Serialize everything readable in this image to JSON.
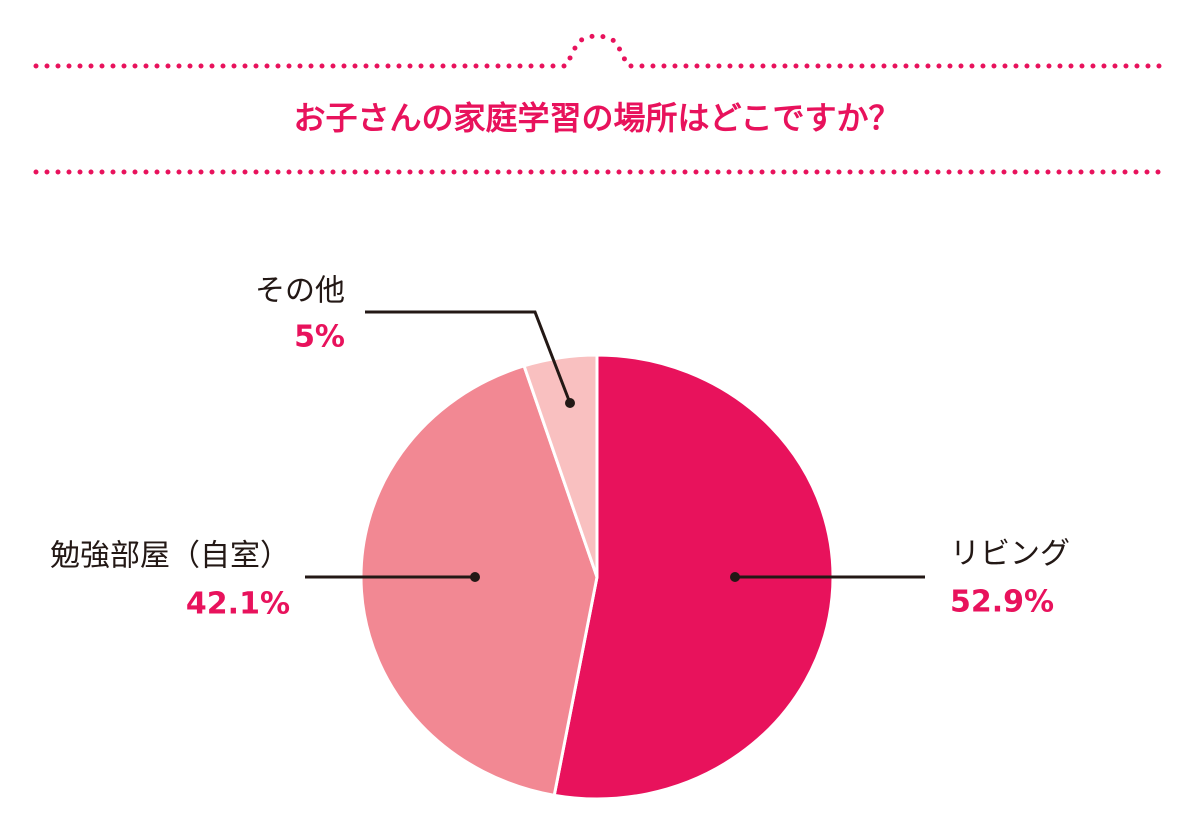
{
  "chart_data": {
    "type": "pie",
    "title": "お子さんの家庭学習の場所はどこですか？",
    "categories": [
      "リビング",
      "勉強部屋（自室）",
      "その他"
    ],
    "values": [
      52.9,
      42.1,
      5
    ],
    "value_labels": [
      "52.9%",
      "42.1%",
      "5%"
    ],
    "colors": [
      "#e8125c",
      "#f28893",
      "#f9c0c0"
    ]
  }
}
